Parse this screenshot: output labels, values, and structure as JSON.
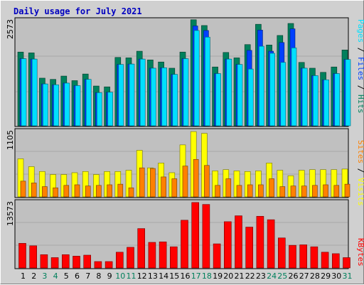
{
  "title": "Daily usage for July 2021",
  "colors": {
    "hits": "#00805c",
    "files": "#0040ff",
    "pages": "#00e0ff",
    "visits": "#ffff00",
    "sites": "#ff8000",
    "kbytes": "#ff0000",
    "weekend_day": "#00805c",
    "weekday": "#000000"
  },
  "right_labels": {
    "top": [
      {
        "text": "Pages",
        "color": "#00e0ff"
      },
      {
        "text": " / ",
        "color": "#000000"
      },
      {
        "text": "Files",
        "color": "#0040ff"
      },
      {
        "text": " / ",
        "color": "#000000"
      },
      {
        "text": "Hits",
        "color": "#00805c"
      }
    ],
    "mid": [
      {
        "text": "Sites",
        "color": "#ff8000"
      },
      {
        "text": " / ",
        "color": "#000000"
      },
      {
        "text": "Visits",
        "color": "#ffff00"
      }
    ],
    "bot": [
      {
        "text": "KBytes",
        "color": "#ff0000"
      }
    ]
  },
  "chart_data": [
    {
      "type": "bar",
      "panel": "hits-files-pages",
      "ymax_label": "2573",
      "ylim": [
        0,
        2573
      ],
      "categories": [
        "1",
        "2",
        "3",
        "4",
        "5",
        "6",
        "7",
        "8",
        "9",
        "10",
        "11",
        "12",
        "13",
        "14",
        "15",
        "16",
        "17",
        "18",
        "19",
        "20",
        "21",
        "22",
        "23",
        "24",
        "25",
        "26",
        "27",
        "28",
        "29",
        "30",
        "31"
      ],
      "weekend": [
        3,
        4,
        10,
        11,
        17,
        18,
        24,
        25,
        31
      ],
      "series": [
        {
          "name": "Hits",
          "values": [
            1780,
            1760,
            1150,
            1120,
            1200,
            1090,
            1250,
            960,
            940,
            1650,
            1640,
            1800,
            1590,
            1540,
            1390,
            1780,
            2560,
            2420,
            1420,
            1770,
            1640,
            1960,
            2450,
            1950,
            2180,
            2470,
            1530,
            1390,
            1290,
            1420,
            1830
          ]
        },
        {
          "name": "Files",
          "values": [
            1620,
            1610,
            1010,
            990,
            1030,
            970,
            1120,
            800,
            810,
            1480,
            1490,
            1610,
            1390,
            1400,
            1240,
            1620,
            2410,
            2300,
            1260,
            1610,
            1480,
            1820,
            2310,
            1800,
            2010,
            2340,
            1390,
            1210,
            1110,
            1260,
            1600
          ]
        },
        {
          "name": "Pages",
          "values": [
            1620,
            1610,
            1010,
            990,
            1030,
            970,
            1120,
            800,
            810,
            1480,
            1490,
            1610,
            1390,
            1400,
            1240,
            1620,
            2300,
            2140,
            1260,
            1610,
            1480,
            1370,
            1920,
            1750,
            1530,
            1880,
            1390,
            1210,
            1110,
            1260,
            1600
          ]
        }
      ]
    },
    {
      "type": "bar",
      "panel": "visits-sites",
      "ymax_label": "1105",
      "ylim": [
        0,
        1105
      ],
      "categories": [
        "1",
        "2",
        "3",
        "4",
        "5",
        "6",
        "7",
        "8",
        "9",
        "10",
        "11",
        "12",
        "13",
        "14",
        "15",
        "16",
        "17",
        "18",
        "19",
        "20",
        "21",
        "22",
        "23",
        "24",
        "25",
        "26",
        "27",
        "28",
        "29",
        "30",
        "31"
      ],
      "series": [
        {
          "name": "Visits",
          "values": [
            630,
            500,
            420,
            370,
            370,
            400,
            420,
            370,
            420,
            420,
            440,
            770,
            480,
            560,
            400,
            860,
            1080,
            1050,
            430,
            450,
            430,
            420,
            430,
            560,
            440,
            350,
            440,
            450,
            450,
            450,
            460
          ]
        },
        {
          "name": "Sites",
          "values": [
            260,
            230,
            170,
            150,
            190,
            200,
            180,
            190,
            200,
            210,
            150,
            480,
            470,
            330,
            300,
            510,
            620,
            520,
            190,
            300,
            190,
            200,
            200,
            300,
            170,
            180,
            180,
            190,
            200,
            190,
            210
          ]
        }
      ]
    },
    {
      "type": "bar",
      "panel": "kbytes",
      "ymax_label": "13573",
      "ylim": [
        0,
        13573
      ],
      "categories": [
        "1",
        "2",
        "3",
        "4",
        "5",
        "6",
        "7",
        "8",
        "9",
        "10",
        "11",
        "12",
        "13",
        "14",
        "15",
        "16",
        "17",
        "18",
        "19",
        "20",
        "21",
        "22",
        "23",
        "24",
        "25",
        "26",
        "27",
        "28",
        "29",
        "30",
        "31"
      ],
      "series": [
        {
          "name": "KBytes",
          "values": [
            5000,
            4500,
            2700,
            2100,
            2700,
            2400,
            2600,
            1300,
            1300,
            3200,
            4200,
            8000,
            5200,
            5300,
            4300,
            9700,
            13300,
            12900,
            4900,
            9400,
            10600,
            8300,
            10500,
            9800,
            6100,
            4600,
            4700,
            4300,
            3200,
            2900,
            2100
          ]
        }
      ]
    }
  ]
}
